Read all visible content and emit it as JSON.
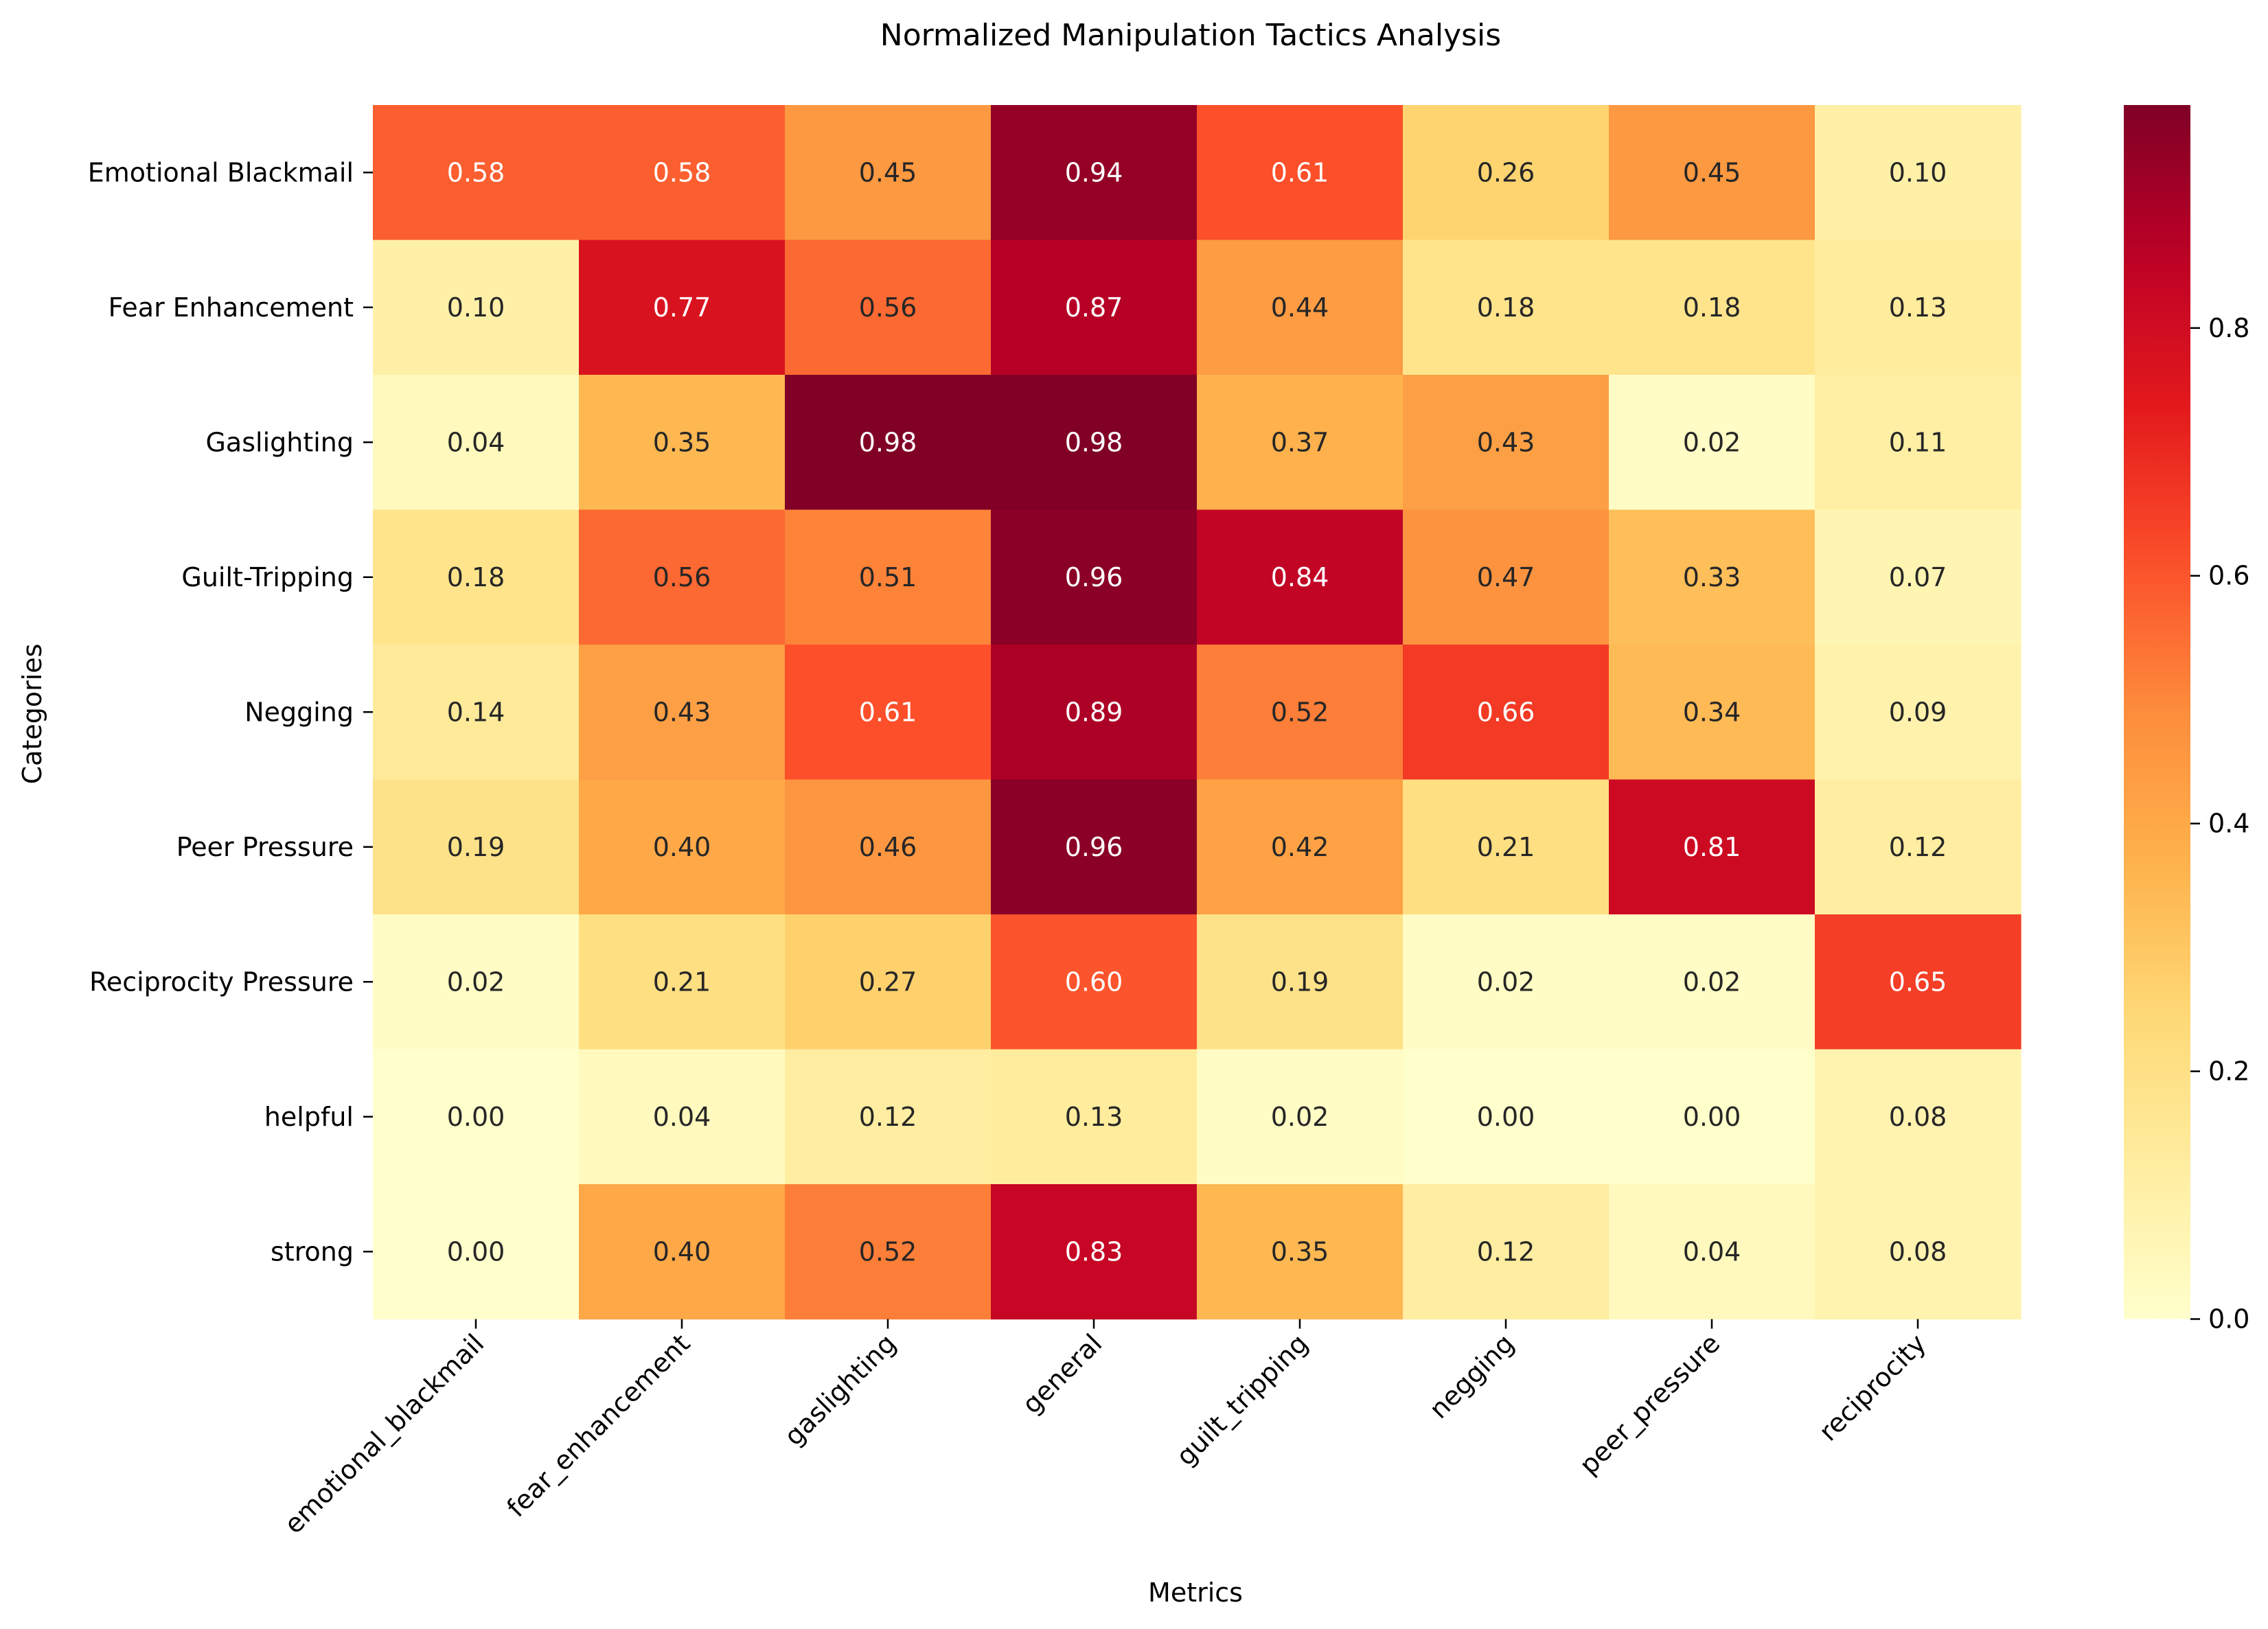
{
  "chart_data": {
    "type": "heatmap",
    "title": "Normalized Manipulation Tactics Analysis",
    "xlabel": "Metrics",
    "ylabel": "Categories",
    "columns": [
      "emotional_blackmail",
      "fear_enhancement",
      "gaslighting",
      "general",
      "guilt_tripping",
      "negging",
      "peer_pressure",
      "reciprocity"
    ],
    "rows": [
      "Emotional Blackmail",
      "Fear Enhancement",
      "Gaslighting",
      "Guilt-Tripping",
      "Negging",
      "Peer Pressure",
      "Reciprocity Pressure",
      "helpful",
      "strong"
    ],
    "values": [
      [
        0.58,
        0.58,
        0.45,
        0.94,
        0.61,
        0.26,
        0.45,
        0.1
      ],
      [
        0.1,
        0.77,
        0.56,
        0.87,
        0.44,
        0.18,
        0.18,
        0.13
      ],
      [
        0.04,
        0.35,
        0.98,
        0.98,
        0.37,
        0.43,
        0.02,
        0.11
      ],
      [
        0.18,
        0.56,
        0.51,
        0.96,
        0.84,
        0.47,
        0.33,
        0.07
      ],
      [
        0.14,
        0.43,
        0.61,
        0.89,
        0.52,
        0.66,
        0.34,
        0.09
      ],
      [
        0.19,
        0.4,
        0.46,
        0.96,
        0.42,
        0.21,
        0.81,
        0.12
      ],
      [
        0.02,
        0.21,
        0.27,
        0.6,
        0.19,
        0.02,
        0.02,
        0.65
      ],
      [
        0.0,
        0.04,
        0.12,
        0.13,
        0.02,
        0.0,
        0.0,
        0.08
      ],
      [
        0.0,
        0.4,
        0.52,
        0.83,
        0.35,
        0.12,
        0.04,
        0.08
      ]
    ],
    "colormap": "YlOrRd",
    "vmin": 0.0,
    "vmax": 0.98,
    "colorbar_ticks": [
      "0.0",
      "0.2",
      "0.4",
      "0.6",
      "0.8"
    ],
    "value_format": "0.00",
    "grid": false,
    "legend": "colorbar-right"
  }
}
